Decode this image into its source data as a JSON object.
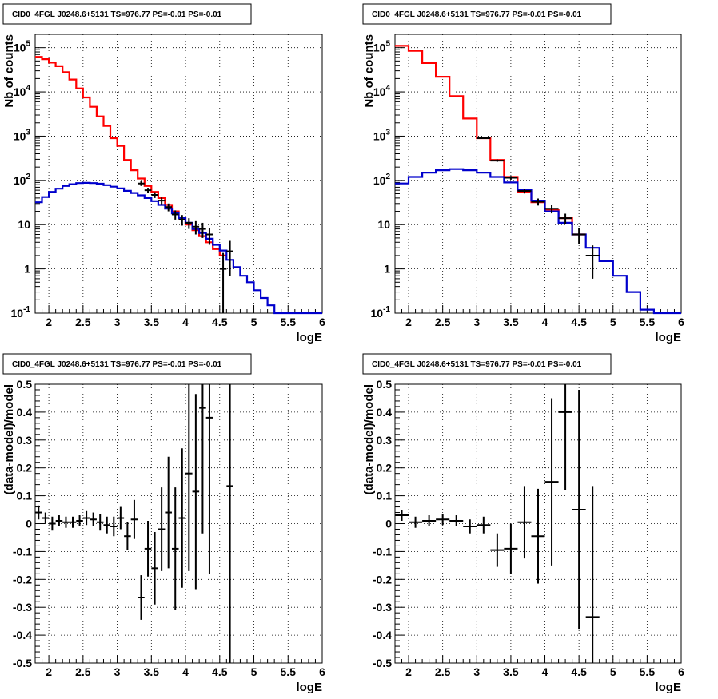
{
  "chart_data": [
    {
      "type": "line",
      "title": "CID0_4FGL J0248.6+5131 TS=976.77 PS=-0.01 PS=-0.01",
      "xlabel": "logE",
      "ylabel": "Nb of counts",
      "xlim": [
        1.8,
        6.0
      ],
      "ylim": [
        0.1,
        200000
      ],
      "y_scale": "log",
      "grid": true,
      "x_ticks": [
        "2",
        "2.5",
        "3",
        "3.5",
        "4",
        "4.5",
        "5",
        "5.5",
        "6"
      ],
      "y_ticks": [
        "10^-1",
        "1",
        "10",
        "10^2",
        "10^3",
        "10^4",
        "10^5"
      ],
      "bin_width": 0.1,
      "series": [
        {
          "color": "#ff0000",
          "style": "step",
          "x": [
            1.85,
            1.95,
            2.05,
            2.15,
            2.25,
            2.35,
            2.45,
            2.55,
            2.65,
            2.75,
            2.85,
            2.95,
            3.05,
            3.15,
            3.25,
            3.35,
            3.45,
            3.55,
            3.65,
            3.75,
            3.85,
            3.95,
            4.05,
            4.15,
            4.25,
            4.35,
            4.45,
            4.55
          ],
          "values": [
            62000,
            55000,
            46000,
            38000,
            28000,
            19000,
            12000,
            7500,
            4600,
            2800,
            1700,
            900,
            600,
            290,
            170,
            110,
            75,
            55,
            40,
            28,
            20,
            14,
            10,
            7.5,
            5.5,
            4,
            2.8,
            2
          ]
        },
        {
          "color": "#0000cc",
          "style": "step",
          "x": [
            1.85,
            1.95,
            2.05,
            2.15,
            2.25,
            2.35,
            2.45,
            2.55,
            2.65,
            2.75,
            2.85,
            2.95,
            3.05,
            3.15,
            3.25,
            3.35,
            3.45,
            3.55,
            3.65,
            3.75,
            3.85,
            3.95,
            4.05,
            4.15,
            4.25,
            4.35,
            4.45,
            4.55,
            4.65,
            4.75,
            4.85,
            4.95,
            5.05,
            5.15,
            5.25,
            5.35,
            5.45,
            5.55,
            5.65,
            5.75,
            5.85,
            5.95
          ],
          "values": [
            32,
            42,
            55,
            65,
            75,
            82,
            87,
            88,
            87,
            84,
            78,
            72,
            66,
            58,
            52,
            46,
            40,
            34,
            28,
            23,
            18,
            14,
            11,
            8,
            6.5,
            4.8,
            3.5,
            2.6,
            1.6,
            1.1,
            0.7,
            0.5,
            0.33,
            0.22,
            0.15,
            0.1,
            0.1,
            0.1,
            0.1,
            0.1,
            0.1,
            0.1
          ]
        },
        {
          "color": "#000000",
          "style": "errorbar",
          "name": "data",
          "x": [
            3.35,
            3.45,
            3.55,
            3.65,
            3.75,
            3.85,
            3.95,
            4.05,
            4.15,
            4.25,
            4.35,
            4.55,
            4.65
          ],
          "values": [
            85,
            60,
            47,
            35,
            25,
            17,
            13,
            11,
            9,
            8,
            6,
            1,
            2.5
          ],
          "err_low": [
            10,
            8,
            7,
            6,
            5,
            4,
            3.5,
            3,
            3,
            3,
            2.5,
            0.9,
            1.8
          ],
          "err_high": [
            10,
            8,
            7,
            6,
            5,
            4,
            3.5,
            3,
            3,
            3,
            2.5,
            1.3,
            1.8
          ]
        }
      ]
    },
    {
      "type": "line",
      "title": "CID0_4FGL J0248.6+5131 TS=976.77 PS=-0.01 PS=-0.01",
      "xlabel": "logE",
      "ylabel": "Nb of counts",
      "xlim": [
        1.8,
        6.0
      ],
      "ylim": [
        0.1,
        200000
      ],
      "y_scale": "log",
      "grid": true,
      "x_ticks": [
        "2",
        "2.5",
        "3",
        "3.5",
        "4",
        "4.5",
        "5",
        "5.5",
        "6"
      ],
      "y_ticks": [
        "10^-1",
        "1",
        "10",
        "10^2",
        "10^3",
        "10^4",
        "10^5"
      ],
      "bin_width": 0.2,
      "series": [
        {
          "color": "#ff0000",
          "style": "step",
          "x": [
            1.9,
            2.1,
            2.3,
            2.5,
            2.7,
            2.9,
            3.1,
            3.3,
            3.5,
            3.7,
            3.9,
            4.1,
            4.3,
            4.5
          ],
          "values": [
            110000,
            85000,
            45000,
            22000,
            8000,
            2500,
            900,
            290,
            120,
            55,
            32,
            22,
            14,
            6
          ]
        },
        {
          "color": "#0000cc",
          "style": "step",
          "x": [
            1.9,
            2.1,
            2.3,
            2.5,
            2.7,
            2.9,
            3.1,
            3.3,
            3.5,
            3.7,
            3.9,
            4.1,
            4.3,
            4.5,
            4.7,
            4.9,
            5.1,
            5.3,
            5.5,
            5.7,
            5.9
          ],
          "values": [
            85,
            120,
            150,
            170,
            180,
            170,
            150,
            120,
            90,
            60,
            35,
            20,
            11,
            6,
            3,
            1.5,
            0.7,
            0.3,
            0.12,
            0.1,
            0.1
          ]
        },
        {
          "color": "#000000",
          "style": "errorbar",
          "name": "data",
          "x": [
            3.1,
            3.3,
            3.5,
            3.7,
            3.9,
            4.1,
            4.3,
            4.5,
            4.7
          ],
          "values": [
            900,
            280,
            115,
            58,
            33,
            23,
            14,
            6,
            2
          ],
          "err_low": [
            30,
            17,
            11,
            7.5,
            6,
            5,
            3.7,
            2.4,
            1.4
          ],
          "err_high": [
            30,
            17,
            11,
            7.5,
            6,
            5,
            3.7,
            2.4,
            1.4
          ]
        }
      ]
    },
    {
      "type": "scatter",
      "title": "CID0_4FGL J0248.6+5131 TS=976.77 PS=-0.01 PS=-0.01",
      "xlabel": "logE",
      "ylabel": "(data-model)/model",
      "xlim": [
        1.8,
        6.0
      ],
      "ylim": [
        -0.5,
        0.5
      ],
      "grid": true,
      "x_ticks": [
        "2",
        "2.5",
        "3",
        "3.5",
        "4",
        "4.5",
        "5",
        "5.5",
        "6"
      ],
      "y_ticks": [
        "-0.5",
        "-0.4",
        "-0.3",
        "-0.2",
        "-0.1",
        "0",
        "0.1",
        "0.2",
        "0.3",
        "0.4",
        "0.5"
      ],
      "bin_width": 0.1,
      "series": [
        {
          "color": "#000000",
          "style": "errorbar",
          "name": "residuals",
          "x": [
            1.85,
            1.95,
            2.05,
            2.15,
            2.25,
            2.35,
            2.45,
            2.55,
            2.65,
            2.75,
            2.85,
            2.95,
            3.05,
            3.15,
            3.25,
            3.35,
            3.45,
            3.55,
            3.65,
            3.75,
            3.85,
            3.95,
            4.05,
            4.15,
            4.25,
            4.35,
            4.65
          ],
          "values": [
            0.04,
            0.02,
            0.0,
            0.01,
            0.005,
            0.005,
            0.01,
            0.02,
            0.015,
            0.005,
            -0.005,
            -0.01,
            0.02,
            -0.045,
            0.015,
            -0.265,
            -0.09,
            -0.16,
            -0.02,
            0.04,
            -0.09,
            0.02,
            0.18,
            0.115,
            0.415,
            0.38,
            0.135
          ],
          "err": [
            0.025,
            0.02,
            0.025,
            0.02,
            0.02,
            0.02,
            0.02,
            0.025,
            0.025,
            0.03,
            0.03,
            0.035,
            0.04,
            0.05,
            0.07,
            0.08,
            0.1,
            0.13,
            0.15,
            0.2,
            0.22,
            0.25,
            0.35,
            0.35,
            0.45,
            0.56,
            0.65
          ]
        }
      ]
    },
    {
      "type": "scatter",
      "title": "CID0_4FGL J0248.6+5131 TS=976.77 PS=-0.01 PS=-0.01",
      "xlabel": "logE",
      "ylabel": "(data-model)/model",
      "xlim": [
        1.8,
        6.0
      ],
      "ylim": [
        -0.5,
        0.5
      ],
      "grid": true,
      "x_ticks": [
        "2",
        "2.5",
        "3",
        "3.5",
        "4",
        "4.5",
        "5",
        "5.5",
        "6"
      ],
      "y_ticks": [
        "-0.5",
        "-0.4",
        "-0.3",
        "-0.2",
        "-0.1",
        "0",
        "0.1",
        "0.2",
        "0.3",
        "0.4",
        "0.5"
      ],
      "bin_width": 0.2,
      "series": [
        {
          "color": "#000000",
          "style": "errorbar",
          "name": "residuals",
          "x": [
            1.9,
            2.1,
            2.3,
            2.5,
            2.7,
            2.9,
            3.1,
            3.3,
            3.5,
            3.7,
            3.9,
            4.1,
            4.3,
            4.5,
            4.7
          ],
          "values": [
            0.03,
            0.005,
            0.01,
            0.015,
            0.01,
            -0.01,
            -0.005,
            -0.095,
            -0.09,
            0.005,
            -0.045,
            0.15,
            0.4,
            0.05,
            -0.335
          ],
          "err": [
            0.02,
            0.02,
            0.02,
            0.02,
            0.02,
            0.025,
            0.03,
            0.06,
            0.09,
            0.13,
            0.17,
            0.3,
            0.28,
            0.43,
            0.47
          ]
        }
      ]
    }
  ]
}
